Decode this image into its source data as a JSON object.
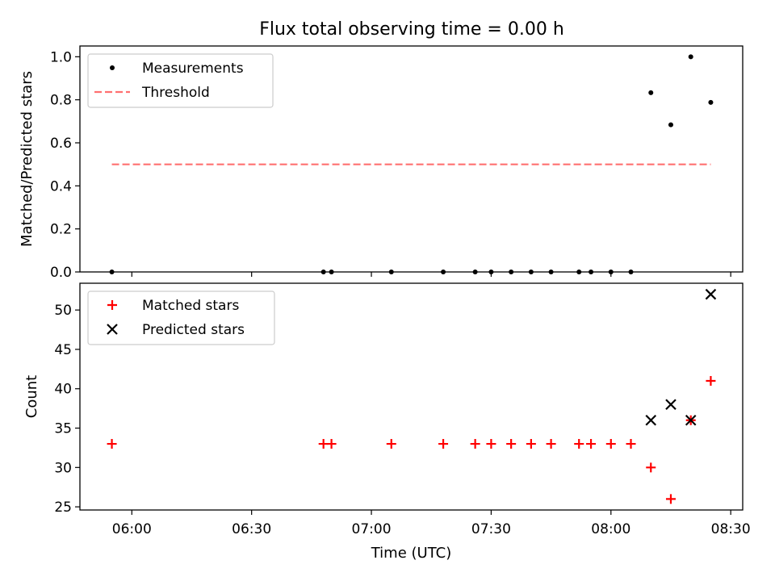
{
  "figure": {
    "title": "Flux total observing time = 0.00 h"
  },
  "chart_data": [
    {
      "type": "scatter",
      "ylabel": "Matched/Predicted stars",
      "xlabel": "",
      "xlim": [
        "05:47",
        "08:33"
      ],
      "ylim": [
        0,
        1.05
      ],
      "yticks": [
        "0.0",
        "0.2",
        "0.4",
        "0.6",
        "0.8",
        "1.0"
      ],
      "xticks": [
        "06:00",
        "06:30",
        "07:00",
        "07:30",
        "08:00",
        "08:30"
      ],
      "show_xtick_labels": false,
      "legend_position": "upper-left",
      "series": [
        {
          "name": "Measurements",
          "kind": "points",
          "color": "#000000",
          "x": [
            "05:55",
            "06:48",
            "06:50",
            "07:05",
            "07:18",
            "07:26",
            "07:30",
            "07:35",
            "07:40",
            "07:45",
            "07:52",
            "07:55",
            "08:00",
            "08:05",
            "08:10",
            "08:15",
            "08:20",
            "08:25"
          ],
          "y": [
            0,
            0,
            0,
            0,
            0,
            0,
            0,
            0,
            0,
            0,
            0,
            0,
            0,
            0,
            0.833,
            0.684,
            1.0,
            0.788
          ]
        },
        {
          "name": "Threshold",
          "kind": "dashed-line",
          "color": "#ff7070",
          "x": [
            "05:55",
            "08:25"
          ],
          "y": [
            0.5,
            0.5
          ]
        }
      ]
    },
    {
      "type": "scatter",
      "ylabel": "Count",
      "xlabel": "Time (UTC)",
      "xlim": [
        "05:47",
        "08:33"
      ],
      "ylim": [
        24.6,
        53.4
      ],
      "yticks": [
        "25",
        "30",
        "35",
        "40",
        "45",
        "50"
      ],
      "xticks": [
        "06:00",
        "06:30",
        "07:00",
        "07:30",
        "08:00",
        "08:30"
      ],
      "show_xtick_labels": true,
      "legend_position": "upper-left",
      "series": [
        {
          "name": "Matched stars",
          "kind": "plus",
          "color": "#ff0000",
          "x": [
            "05:55",
            "06:48",
            "06:50",
            "07:05",
            "07:18",
            "07:26",
            "07:30",
            "07:35",
            "07:40",
            "07:45",
            "07:52",
            "07:55",
            "08:00",
            "08:05",
            "08:10",
            "08:15",
            "08:20",
            "08:25"
          ],
          "y": [
            33,
            33,
            33,
            33,
            33,
            33,
            33,
            33,
            33,
            33,
            33,
            33,
            33,
            33,
            30,
            26,
            36,
            41
          ]
        },
        {
          "name": "Predicted stars",
          "kind": "cross",
          "color": "#000000",
          "x": [
            "08:10",
            "08:15",
            "08:20",
            "08:25"
          ],
          "y": [
            36,
            38,
            36,
            52
          ]
        }
      ]
    }
  ]
}
